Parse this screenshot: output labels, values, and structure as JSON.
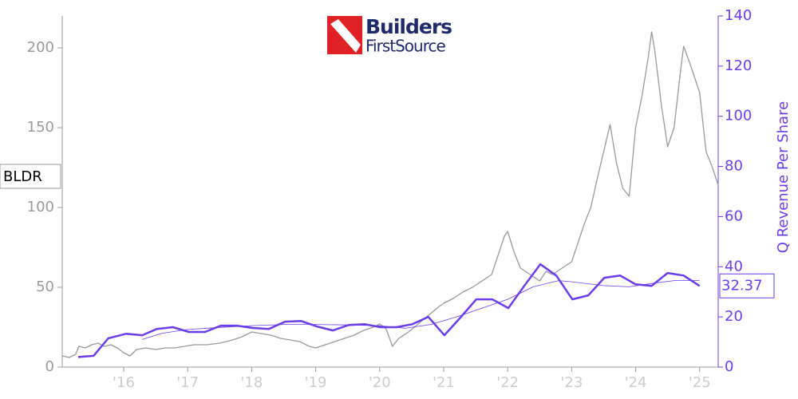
{
  "chart_data": {
    "type": "line",
    "logo_text": "Builders",
    "logo_subtext": "FirstSource",
    "y2_label": "Q Revenue Per Share",
    "xlim": [
      2015.04,
      2025.29
    ],
    "xticks": [
      {
        "value": 2016,
        "label": "'16"
      },
      {
        "value": 2017,
        "label": "'17"
      },
      {
        "value": 2018,
        "label": "'18"
      },
      {
        "value": 2019,
        "label": "'19"
      },
      {
        "value": 2020,
        "label": "'20"
      },
      {
        "value": 2021,
        "label": "'21"
      },
      {
        "value": 2022,
        "label": "'22"
      },
      {
        "value": 2023,
        "label": "'23"
      },
      {
        "value": 2024,
        "label": "'24"
      },
      {
        "value": 2025,
        "label": "'25"
      }
    ],
    "ylim": [
      0,
      220
    ],
    "yticks": [
      0,
      50,
      100,
      150,
      200
    ],
    "y2lim": [
      0,
      140
    ],
    "y2ticks": [
      0,
      20,
      40,
      60,
      80,
      100,
      120,
      140
    ],
    "series": [
      {
        "name": "BLDR",
        "color": "#999999",
        "x": [
          2015.04,
          2015.15,
          2015.25,
          2015.3,
          2015.4,
          2015.5,
          2015.6,
          2015.7,
          2015.8,
          2015.9,
          2016.0,
          2016.1,
          2016.2,
          2016.35,
          2016.5,
          2016.65,
          2016.8,
          2016.95,
          2017.1,
          2017.3,
          2017.5,
          2017.7,
          2017.85,
          2018.0,
          2018.15,
          2018.3,
          2018.45,
          2018.6,
          2018.75,
          2018.9,
          2019.0,
          2019.15,
          2019.3,
          2019.45,
          2019.6,
          2019.75,
          2019.9,
          2020.0,
          2020.1,
          2020.2,
          2020.3,
          2020.45,
          2020.6,
          2020.75,
          2020.9,
          2021.0,
          2021.15,
          2021.3,
          2021.45,
          2021.6,
          2021.75,
          2021.85,
          2021.95,
          2022.0,
          2022.1,
          2022.2,
          2022.35,
          2022.5,
          2022.6,
          2022.7,
          2022.85,
          2023.0,
          2023.1,
          2023.2,
          2023.3,
          2023.4,
          2023.5,
          2023.6,
          2023.7,
          2023.8,
          2023.9,
          2024.0,
          2024.1,
          2024.2,
          2024.25,
          2024.3,
          2024.4,
          2024.5,
          2024.6,
          2024.7,
          2024.75,
          2024.85,
          2024.95,
          2025.0,
          2025.1,
          2025.2,
          2025.29
        ],
        "values": [
          7,
          6,
          8,
          13,
          12,
          14,
          15,
          13,
          14,
          12,
          9,
          7,
          11,
          12,
          11,
          12,
          12,
          13,
          14,
          14,
          15,
          17,
          19,
          22,
          21,
          20,
          18,
          17,
          16,
          13,
          12,
          14,
          16,
          18,
          20,
          23,
          25,
          27,
          24,
          13,
          18,
          22,
          27,
          32,
          37,
          40,
          43,
          47,
          50,
          54,
          58,
          70,
          82,
          85,
          72,
          62,
          58,
          54,
          60,
          58,
          62,
          66,
          78,
          90,
          100,
          118,
          135,
          152,
          128,
          112,
          107,
          150,
          170,
          195,
          210,
          198,
          165,
          138,
          150,
          185,
          201,
          190,
          178,
          172,
          135,
          125,
          114
        ]
      },
      {
        "color": "#6a3de8",
        "axis": "y2",
        "x": [
          2015.29,
          2015.53,
          2015.76,
          2016.04,
          2016.29,
          2016.52,
          2016.77,
          2017.02,
          2017.27,
          2017.52,
          2017.77,
          2018.02,
          2018.27,
          2018.52,
          2018.77,
          2019.02,
          2019.27,
          2019.52,
          2019.77,
          2020.01,
          2020.26,
          2020.51,
          2020.76,
          2021.01,
          2021.26,
          2021.51,
          2021.76,
          2022.01,
          2022.26,
          2022.51,
          2022.76,
          2023.01,
          2023.26,
          2023.51,
          2023.76,
          2024.0,
          2024.25,
          2024.5,
          2024.75,
          2025.0
        ],
        "values": [
          4,
          4.5,
          11.5,
          13.3,
          12.7,
          15.2,
          15.9,
          14,
          14,
          16.5,
          16.5,
          15.6,
          15.2,
          18.1,
          18.4,
          16.2,
          14.6,
          16.8,
          17.1,
          15.9,
          15.9,
          17.1,
          20,
          12.7,
          19.7,
          27,
          27,
          23.5,
          32.4,
          41,
          36.5,
          27,
          28.6,
          35.6,
          36.5,
          33,
          32.4,
          37.5,
          36.5,
          32.37
        ]
      },
      {
        "color": "#6a3de8",
        "axis": "y2",
        "x": [
          2016.29,
          2016.6,
          2017.0,
          2017.5,
          2018.0,
          2018.5,
          2019.0,
          2019.5,
          2020.0,
          2020.4,
          2020.8,
          2021.2,
          2021.6,
          2022.0,
          2022.4,
          2022.8,
          2023.0,
          2023.5,
          2023.9,
          2024.3,
          2024.6,
          2025.0
        ],
        "values": [
          11,
          13.5,
          15,
          15.8,
          16.5,
          17,
          17,
          16.8,
          16.5,
          15.5,
          17,
          20,
          23.5,
          27,
          32,
          34.5,
          34,
          32.5,
          32,
          33.5,
          34.5,
          34.5
        ]
      }
    ]
  }
}
